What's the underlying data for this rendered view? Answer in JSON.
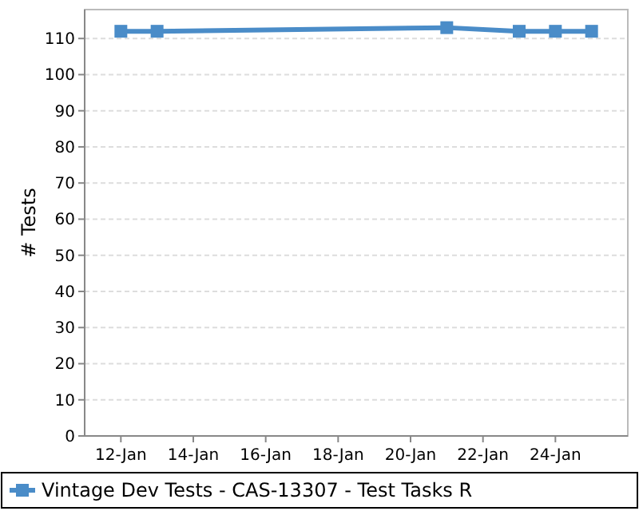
{
  "chart_data": {
    "type": "line",
    "ylabel": "# Tests",
    "x": [
      "--01-12",
      "--01-13",
      "--01-21",
      "--01-23",
      "--01-24",
      "--01-25"
    ],
    "series": [
      {
        "name": "Vintage Dev Tests - CAS-13307 - Test Tasks R",
        "color": "#4a8cc8",
        "values": [
          112,
          112,
          113,
          112,
          112,
          112
        ]
      }
    ],
    "xlim": [
      "--01-11",
      "--01-26"
    ],
    "xticks": [
      {
        "value": "--01-12",
        "label": "12-Jan"
      },
      {
        "value": "--01-14",
        "label": "14-Jan"
      },
      {
        "value": "--01-16",
        "label": "16-Jan"
      },
      {
        "value": "--01-18",
        "label": "18-Jan"
      },
      {
        "value": "--01-20",
        "label": "20-Jan"
      },
      {
        "value": "--01-22",
        "label": "22-Jan"
      },
      {
        "value": "--01-24",
        "label": "24-Jan"
      }
    ],
    "ylim": [
      0,
      118
    ],
    "yticks": [
      0,
      10,
      20,
      30,
      40,
      50,
      60,
      70,
      80,
      90,
      100,
      110
    ],
    "grid": "y",
    "legend": "bottom",
    "marker": "square",
    "line_style": "solid"
  }
}
